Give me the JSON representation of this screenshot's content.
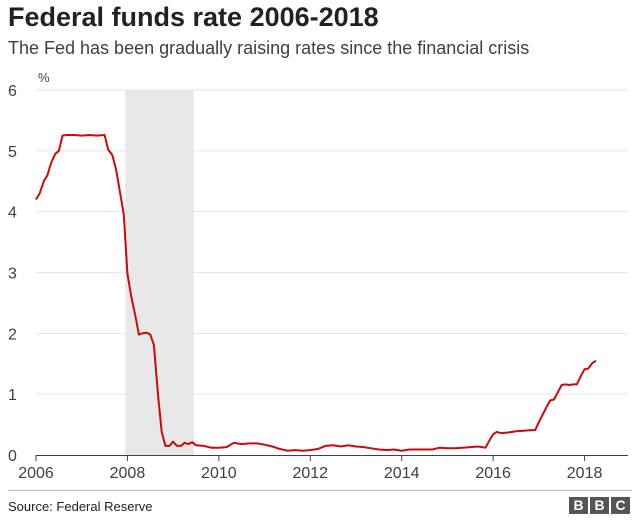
{
  "header": {
    "title": "Federal funds rate 2006-2018",
    "subtitle": "The Fed has been gradually raising rates since the financial crisis"
  },
  "footer": {
    "source": "Source: Federal Reserve",
    "logo_letters": [
      "B",
      "B",
      "C"
    ]
  },
  "colors": {
    "line": "#cc0a0a",
    "recession_band": "#e8e8e8",
    "grid": "#e6e6e6",
    "axis": "#404040"
  },
  "chart_data": {
    "type": "line",
    "title": "Federal funds rate 2006-2018",
    "subtitle": "The Fed has been gradually raising rates since the financial crisis",
    "xlabel": "",
    "ylabel": "%",
    "xlim": [
      2006.0,
      2018.95
    ],
    "ylim": [
      0,
      6
    ],
    "x_ticks": [
      2006,
      2008,
      2010,
      2012,
      2014,
      2016,
      2018
    ],
    "y_ticks": [
      0,
      1,
      2,
      3,
      4,
      5,
      6
    ],
    "grid": true,
    "legend": "none",
    "shaded_regions": [
      {
        "start": 2007.95,
        "end": 2009.45
      }
    ],
    "series": [
      {
        "x": [
          2006.0,
          2006.08,
          2006.17,
          2006.25,
          2006.33,
          2006.42,
          2006.5,
          2006.58,
          2006.67,
          2006.83,
          2007.0,
          2007.17,
          2007.33,
          2007.5,
          2007.58,
          2007.67,
          2007.75,
          2007.83,
          2007.92,
          2008.0,
          2008.08,
          2008.17,
          2008.25,
          2008.33,
          2008.42,
          2008.5,
          2008.58,
          2008.67,
          2008.75,
          2008.83,
          2008.92,
          2009.0,
          2009.08,
          2009.17,
          2009.25,
          2009.33,
          2009.42,
          2009.5,
          2009.67,
          2009.83,
          2010.0,
          2010.17,
          2010.33,
          2010.5,
          2010.67,
          2010.83,
          2011.0,
          2011.17,
          2011.33,
          2011.5,
          2011.67,
          2011.83,
          2012.0,
          2012.17,
          2012.33,
          2012.5,
          2012.67,
          2012.83,
          2013.0,
          2013.17,
          2013.33,
          2013.5,
          2013.67,
          2013.83,
          2014.0,
          2014.17,
          2014.33,
          2014.5,
          2014.67,
          2014.83,
          2015.0,
          2015.17,
          2015.33,
          2015.5,
          2015.67,
          2015.83,
          2015.92,
          2016.0,
          2016.08,
          2016.17,
          2016.33,
          2016.5,
          2016.67,
          2016.83,
          2016.92,
          2017.0,
          2017.08,
          2017.17,
          2017.25,
          2017.33,
          2017.42,
          2017.5,
          2017.58,
          2017.67,
          2017.75,
          2017.83,
          2017.92,
          2018.0,
          2018.08,
          2018.17,
          2018.25
        ],
        "values": [
          4.2,
          4.3,
          4.5,
          4.6,
          4.8,
          4.95,
          5.0,
          5.25,
          5.26,
          5.26,
          5.25,
          5.26,
          5.25,
          5.26,
          5.02,
          4.93,
          4.7,
          4.35,
          3.95,
          2.98,
          2.62,
          2.3,
          1.98,
          2.0,
          2.01,
          1.98,
          1.81,
          0.97,
          0.38,
          0.15,
          0.15,
          0.22,
          0.15,
          0.15,
          0.2,
          0.18,
          0.21,
          0.16,
          0.15,
          0.12,
          0.12,
          0.13,
          0.2,
          0.18,
          0.19,
          0.19,
          0.17,
          0.14,
          0.1,
          0.07,
          0.08,
          0.07,
          0.08,
          0.1,
          0.15,
          0.16,
          0.14,
          0.16,
          0.14,
          0.13,
          0.11,
          0.09,
          0.08,
          0.09,
          0.07,
          0.09,
          0.09,
          0.09,
          0.09,
          0.12,
          0.11,
          0.11,
          0.12,
          0.13,
          0.14,
          0.12,
          0.24,
          0.34,
          0.38,
          0.36,
          0.37,
          0.39,
          0.4,
          0.41,
          0.41,
          0.54,
          0.66,
          0.79,
          0.9,
          0.91,
          1.04,
          1.15,
          1.16,
          1.15,
          1.16,
          1.16,
          1.3,
          1.41,
          1.42,
          1.51,
          1.55
        ]
      }
    ]
  }
}
